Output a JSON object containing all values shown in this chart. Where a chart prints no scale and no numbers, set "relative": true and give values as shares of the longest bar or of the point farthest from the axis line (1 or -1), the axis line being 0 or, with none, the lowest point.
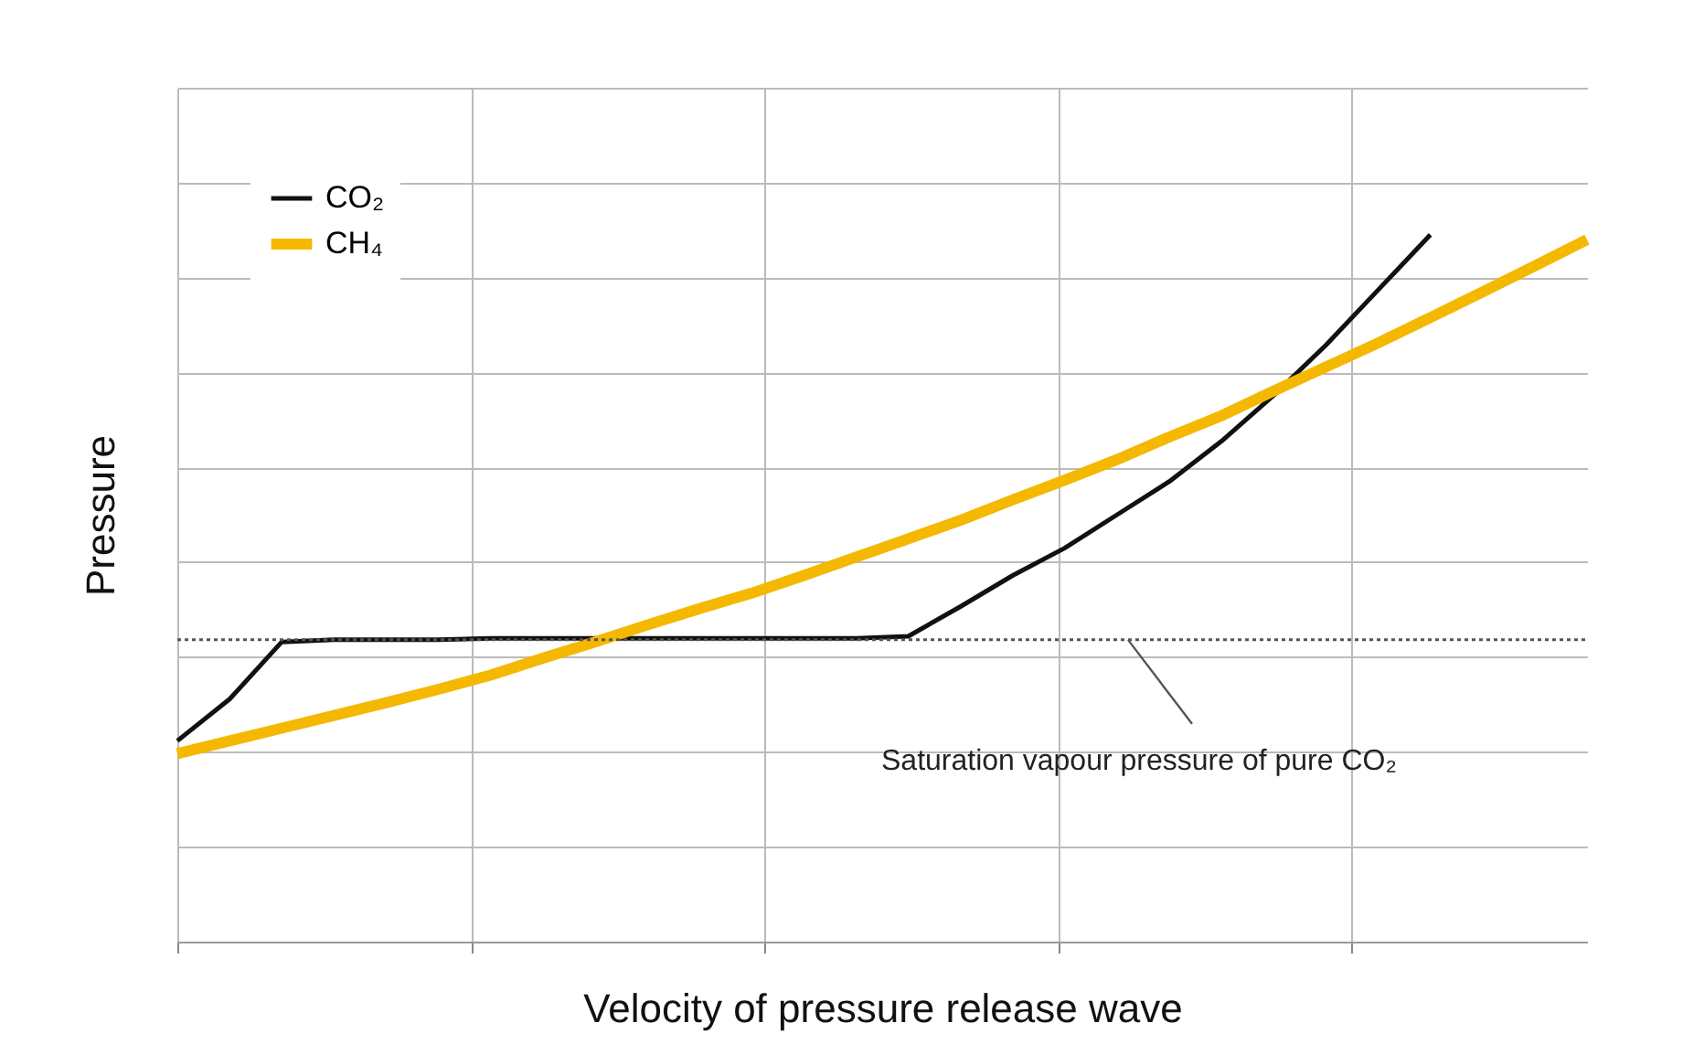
{
  "chart_data": {
    "type": "line",
    "relative": true,
    "xlabel": "Velocity of pressure release wave",
    "ylabel": "Pressure",
    "categories": [
      null,
      null,
      null,
      null,
      null,
      null,
      null,
      null,
      null,
      null,
      null,
      null,
      null,
      null,
      null,
      null,
      null,
      null,
      null,
      null,
      null,
      null,
      null,
      null,
      null,
      null,
      null,
      null
    ],
    "series": [
      {
        "name": "CO₂",
        "color": "#111111",
        "values": [
          0.284,
          0.343,
          0.424,
          0.427,
          0.427,
          0.427,
          0.429,
          0.429,
          0.429,
          0.429,
          0.429,
          0.429,
          0.429,
          0.429,
          0.432,
          0.474,
          0.518,
          0.557,
          0.604,
          0.651,
          0.708,
          0.773,
          0.844,
          0.922,
          1.0,
          null,
          null,
          null
        ]
      },
      {
        "name": "CH₄",
        "color": "#f5b800",
        "values": [
          0.266,
          0.284,
          0.302,
          0.32,
          0.338,
          0.357,
          0.377,
          0.401,
          0.424,
          0.448,
          0.471,
          0.493,
          0.518,
          0.544,
          0.57,
          0.596,
          0.625,
          0.653,
          0.682,
          0.714,
          0.744,
          0.779,
          0.813,
          0.847,
          0.883,
          0.919,
          0.956,
          0.993
        ]
      }
    ],
    "ref_lines": [
      {
        "axis": "y",
        "value": 0.427,
        "label": "Saturation vapour pressure of pure CO₂",
        "color": "#555555",
        "line_style": "dotted"
      }
    ],
    "grid": true,
    "legend": "top left",
    "tick_labels": false,
    "marker": "none",
    "line_style": "solid"
  }
}
